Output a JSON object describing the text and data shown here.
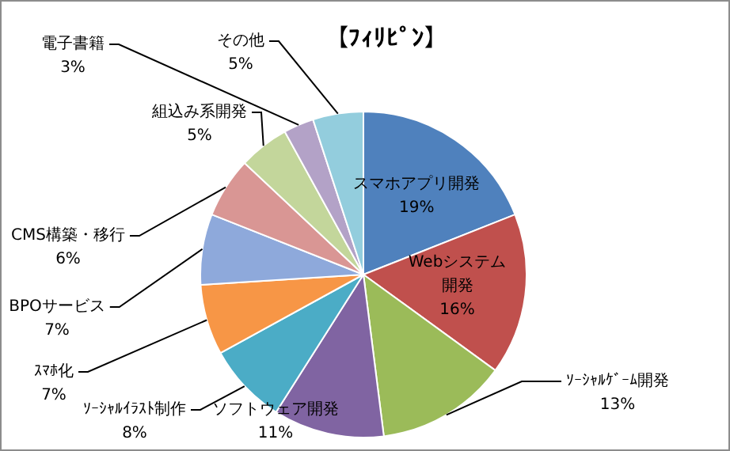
{
  "chart_data": {
    "type": "pie",
    "title": "【ﾌｨﾘﾋﾟﾝ】",
    "categories": [
      "スマホアプリ開発",
      "Webシステム開発",
      "ｿｰｼｬﾙｹﾞｰﾑ開発",
      "ソフトウェア開発",
      "ｿｰｼｬﾙｲﾗｽﾄ制作",
      "ｽﾏﾎ化",
      "BPOサービス",
      "CMS構築・移行",
      "組込み系開発",
      "電子書籍",
      "その他"
    ],
    "values": [
      19,
      16,
      13,
      11,
      8,
      7,
      7,
      6,
      5,
      3,
      5
    ],
    "colors": [
      "#4f81bd",
      "#c0504d",
      "#9bbb59",
      "#8064a2",
      "#4bacc6",
      "#f79646",
      "#8ea9db",
      "#d99694",
      "#c3d69b",
      "#b3a2c7",
      "#93cddd"
    ],
    "value_labels": [
      "19%",
      "16%",
      "13%",
      "11%",
      "8%",
      "7%",
      "7%",
      "6%",
      "5%",
      "3%",
      "5%"
    ],
    "legend": false
  }
}
